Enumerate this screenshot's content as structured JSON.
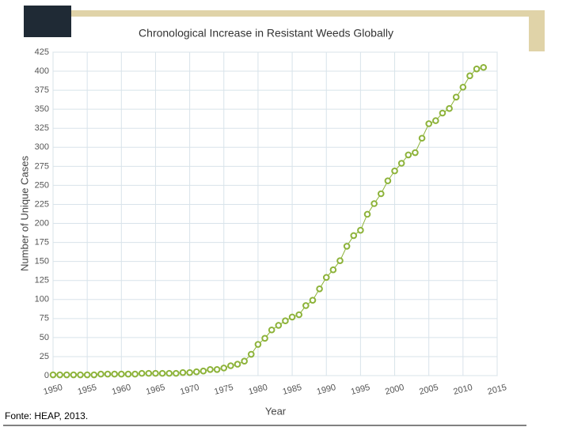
{
  "chart_data": {
    "type": "line",
    "title": "Chronological Increase in Resistant Weeds Globally",
    "x_label": "Year",
    "y_label": "Number of Unique Cases",
    "source": "Fonte: HEAP, 2013.",
    "x": [
      1950,
      1951,
      1952,
      1953,
      1954,
      1955,
      1956,
      1957,
      1958,
      1959,
      1960,
      1961,
      1962,
      1963,
      1964,
      1965,
      1966,
      1967,
      1968,
      1969,
      1970,
      1971,
      1972,
      1973,
      1974,
      1975,
      1976,
      1977,
      1978,
      1979,
      1980,
      1981,
      1982,
      1983,
      1984,
      1985,
      1986,
      1987,
      1988,
      1989,
      1990,
      1991,
      1992,
      1993,
      1994,
      1995,
      1996,
      1997,
      1998,
      1999,
      2000,
      2001,
      2002,
      2003,
      2004,
      2005,
      2006,
      2007,
      2008,
      2009,
      2010,
      2011,
      2012,
      2013
    ],
    "series": [
      {
        "color": "#8db33a",
        "values": [
          1,
          1,
          1,
          1,
          1,
          1,
          1,
          2,
          2,
          2,
          2,
          2,
          2,
          3,
          3,
          3,
          3,
          3,
          3,
          4,
          4,
          5,
          6,
          8,
          8,
          10,
          13,
          15,
          19,
          28,
          41,
          49,
          60,
          66,
          72,
          77,
          80,
          92,
          99,
          114,
          129,
          139,
          151,
          170,
          184,
          191,
          212,
          226,
          239,
          256,
          269,
          279,
          290,
          293,
          312,
          331,
          335,
          345,
          351,
          366,
          379,
          394,
          403,
          405
        ]
      }
    ],
    "xlim": [
      1950,
      2015
    ],
    "xticks": [
      1950,
      1955,
      1960,
      1965,
      1970,
      1975,
      1980,
      1985,
      1990,
      1995,
      2000,
      2005,
      2010,
      2015
    ],
    "ylim": [
      0,
      425
    ],
    "yticks": [
      0,
      25,
      50,
      75,
      100,
      125,
      150,
      175,
      200,
      225,
      250,
      275,
      300,
      325,
      350,
      375,
      400,
      425
    ],
    "grid": true
  }
}
